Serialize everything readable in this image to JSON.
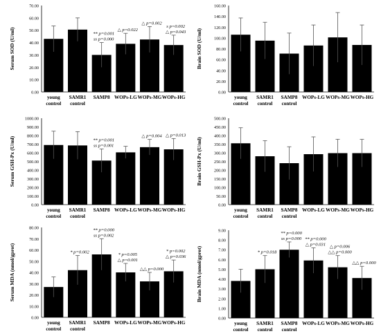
{
  "chart_data": [
    {
      "type": "bar",
      "ylabel": "Serum SOD (U/ml)",
      "ylim": [
        0,
        70
      ],
      "yticks": [
        "0.00",
        "10.00",
        "20.00",
        "30.00",
        "40.00",
        "50.00",
        "60.00",
        "70.00"
      ],
      "categories": [
        [
          "young",
          "control"
        ],
        [
          "SAMR1",
          "control"
        ],
        [
          "SAMP8",
          ""
        ],
        [
          "WOPs-LG",
          ""
        ],
        [
          "WOPs-MG",
          ""
        ],
        [
          "WOPs-HG",
          ""
        ]
      ],
      "values": [
        43,
        50.5,
        30,
        39,
        42.5,
        38
      ],
      "errors": [
        10.5,
        9.5,
        10,
        8.5,
        10.5,
        8
      ],
      "bar_color": "#000000",
      "grid": false,
      "annotations": [
        {
          "bar": 2,
          "lines": [
            "** p=0.001",
            "ss p=0.000"
          ]
        },
        {
          "bar": 3,
          "lines": [
            "△ p=0.022"
          ]
        },
        {
          "bar": 4,
          "lines": [
            "△ p=0.002"
          ]
        },
        {
          "bar": 5,
          "lines": [
            "s p=0.002",
            "△ p=0.043"
          ]
        }
      ]
    },
    {
      "type": "bar",
      "ylabel": "Brain SOD (U/ml)",
      "ylim": [
        0,
        160
      ],
      "yticks": [
        "0.00",
        "20.00",
        "40.00",
        "60.00",
        "80.00",
        "100.00",
        "120.00",
        "140.00",
        "160.00"
      ],
      "categories": [
        [
          "young",
          "control"
        ],
        [
          "SAMR1",
          "control"
        ],
        [
          "SAMP8",
          "control"
        ],
        [
          "WOPs-LG",
          ""
        ],
        [
          "WOPs-MG",
          ""
        ],
        [
          "WOPs-HG",
          ""
        ]
      ],
      "values": [
        106,
        95,
        71,
        86,
        101,
        87
      ],
      "errors": [
        31,
        34,
        38,
        38,
        46,
        37
      ],
      "bar_color": "#000000",
      "grid": false,
      "annotations": []
    },
    {
      "type": "bar",
      "ylabel": "Serum GSH-Px (U/ml)",
      "ylim": [
        0,
        1000
      ],
      "yticks": [
        "0.00",
        "100.00",
        "200.00",
        "300.00",
        "400.00",
        "500.00",
        "600.00",
        "700.00",
        "800.00",
        "900.00",
        "1000.00"
      ],
      "categories": [
        [
          "young",
          "control"
        ],
        [
          "SAMR1",
          "control"
        ],
        [
          "SAMP8",
          ""
        ],
        [
          "WOPs-LG",
          ""
        ],
        [
          "WOPs-MG",
          ""
        ],
        [
          "WOPs-HG",
          ""
        ]
      ],
      "values": [
        690,
        685,
        510,
        605,
        665,
        640
      ],
      "errors": [
        160,
        160,
        135,
        70,
        90,
        125
      ],
      "bar_color": "#000000",
      "grid": false,
      "annotations": [
        {
          "bar": 2,
          "lines": [
            "** p=0.001",
            "ss p=0.001"
          ]
        },
        {
          "bar": 4,
          "lines": [
            "△ p=0.004"
          ]
        },
        {
          "bar": 5,
          "lines": [
            "△ p=0.013"
          ]
        }
      ]
    },
    {
      "type": "bar",
      "ylabel": "Brain GSH-Px (U/ml)",
      "ylim": [
        0,
        500
      ],
      "yticks": [
        "0.00",
        "50.00",
        "100.00",
        "150.00",
        "200.00",
        "250.00",
        "300.00",
        "350.00",
        "400.00",
        "450.00",
        "500.00"
      ],
      "categories": [
        [
          "young",
          "control"
        ],
        [
          "SAMR1",
          "control"
        ],
        [
          "SAMP8",
          "control"
        ],
        [
          "WOPs-LG",
          ""
        ],
        [
          "WOPs-MG",
          ""
        ],
        [
          "WOPs-HG",
          ""
        ]
      ],
      "values": [
        355,
        280,
        240,
        292,
        298,
        298
      ],
      "errors": [
        90,
        90,
        95,
        100,
        80,
        80
      ],
      "bar_color": "#000000",
      "grid": false,
      "annotations": []
    },
    {
      "type": "bar",
      "ylabel": "Serum MDA (nmol/gprot)",
      "ylim": [
        0,
        80
      ],
      "yticks": [
        "0.00",
        "10.00",
        "20.00",
        "30.00",
        "40.00",
        "50.00",
        "60.00",
        "70.00",
        "80.00"
      ],
      "categories": [
        [
          "young",
          "control"
        ],
        [
          "SAMR1",
          "control"
        ],
        [
          "SAMP8",
          ""
        ],
        [
          "WOPs-LG",
          ""
        ],
        [
          "WOPs-MG",
          ""
        ],
        [
          "WOPs-HG",
          ""
        ]
      ],
      "values": [
        27,
        42,
        56,
        40,
        32,
        41
      ],
      "errors": [
        9,
        13,
        14,
        8,
        8,
        10
      ],
      "bar_color": "#000000",
      "grid": false,
      "annotations": [
        {
          "bar": 1,
          "lines": [
            "* p=0.002"
          ]
        },
        {
          "bar": 2,
          "lines": [
            "** p=0.000",
            "ss p=0.002"
          ]
        },
        {
          "bar": 3,
          "lines": [
            "* p=0.005",
            "△ p=0.001"
          ]
        },
        {
          "bar": 4,
          "lines": [
            "△△ p=0.000"
          ]
        },
        {
          "bar": 5,
          "lines": [
            "* p=0.002",
            "△ p=0.036"
          ]
        }
      ]
    },
    {
      "type": "bar",
      "ylabel": "Brain MDA (nmol/gprot)",
      "ylim": [
        0,
        9
      ],
      "yticks": [
        "0.00",
        "1.00",
        "2.00",
        "3.00",
        "4.00",
        "5.00",
        "6.00",
        "7.00",
        "8.00",
        "9.00"
      ],
      "categories": [
        [
          "young",
          "control"
        ],
        [
          "SAMR1",
          "control"
        ],
        [
          "SAMP8",
          "control"
        ],
        [
          "WOPs-LG",
          ""
        ],
        [
          "WOPs-MG",
          ""
        ],
        [
          "WOPs-HG",
          ""
        ]
      ],
      "values": [
        3.8,
        5.0,
        7.0,
        5.9,
        5.2,
        4.1
      ],
      "errors": [
        1.2,
        1.4,
        0.8,
        1.3,
        1.2,
        1.2
      ],
      "bar_color": "#000000",
      "grid": false,
      "annotations": [
        {
          "bar": 1,
          "lines": [
            "* p=0.018"
          ]
        },
        {
          "bar": 2,
          "lines": [
            "** p=0.000",
            "ss p=0.000"
          ]
        },
        {
          "bar": 3,
          "lines": [
            "** p=0.000",
            "△ p=0.031"
          ]
        },
        {
          "bar": 4,
          "lines": [
            "△ p=0.006",
            "△△ p=0.000"
          ]
        },
        {
          "bar": 5,
          "lines": [
            "△△ p=0.000"
          ]
        }
      ]
    }
  ]
}
